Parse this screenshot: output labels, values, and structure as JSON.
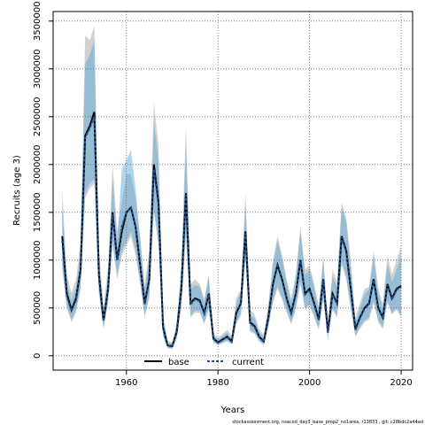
{
  "chart_data": {
    "type": "line",
    "xlabel": "Years",
    "ylabel": "Recruits (age 3)",
    "xlim": [
      1944,
      2022.5
    ],
    "ylim": [
      -150000,
      3600000
    ],
    "x_ticks": [
      1960,
      1980,
      2000,
      2020
    ],
    "y_ticks": [
      0,
      500000,
      1000000,
      1500000,
      2000000,
      2500000,
      3000000,
      3500000
    ],
    "grid": true,
    "legend": {
      "placement": "bottom-left",
      "entries": [
        "base",
        "current"
      ]
    },
    "footer": "stockassessment.org, nsacod_day3_base_prop2_no1area, r13833 , git: c28bdc2a44ad",
    "colors": {
      "base_line": "#000000",
      "current_line": "#1f4e8c",
      "base_band": "#999999",
      "current_band": "#4fa3d9",
      "grid": "#666666"
    },
    "years": [
      1946,
      1947,
      1948,
      1949,
      1950,
      1951,
      1952,
      1953,
      1954,
      1955,
      1956,
      1957,
      1958,
      1959,
      1960,
      1961,
      1962,
      1963,
      1964,
      1965,
      1966,
      1967,
      1968,
      1969,
      1970,
      1971,
      1972,
      1973,
      1974,
      1975,
      1976,
      1977,
      1978,
      1979,
      1980,
      1981,
      1982,
      1983,
      1984,
      1985,
      1986,
      1987,
      1988,
      1989,
      1990,
      1991,
      1992,
      1993,
      1994,
      1995,
      1996,
      1997,
      1998,
      1999,
      2000,
      2001,
      2002,
      2003,
      2004,
      2005,
      2006,
      2007,
      2008,
      2009,
      2010,
      2011,
      2012,
      2013,
      2014,
      2015,
      2016,
      2017,
      2018,
      2019,
      2020
    ],
    "series": [
      {
        "name": "base",
        "values": [
          1250000,
          650000,
          480000,
          600000,
          900000,
          2300000,
          2400000,
          2550000,
          850000,
          370000,
          700000,
          1500000,
          1000000,
          1300000,
          1500000,
          1550000,
          1350000,
          950000,
          550000,
          800000,
          2000000,
          1600000,
          300000,
          110000,
          100000,
          250000,
          700000,
          1700000,
          550000,
          600000,
          580000,
          450000,
          650000,
          180000,
          140000,
          170000,
          200000,
          150000,
          450000,
          550000,
          1300000,
          350000,
          310000,
          200000,
          150000,
          400000,
          750000,
          950000,
          800000,
          600000,
          450000,
          650000,
          1000000,
          650000,
          700000,
          550000,
          380000,
          800000,
          250000,
          650000,
          550000,
          1250000,
          1100000,
          700000,
          280000,
          400000,
          500000,
          550000,
          800000,
          500000,
          400000,
          750000,
          600000,
          700000,
          730000
        ],
        "lower": [
          900000,
          500000,
          350000,
          450000,
          700000,
          1650000,
          1750000,
          1800000,
          650000,
          280000,
          550000,
          1150000,
          800000,
          1050000,
          1150000,
          1250000,
          1050000,
          750000,
          400000,
          600000,
          1500000,
          1150000,
          200000,
          80000,
          70000,
          180000,
          500000,
          1250000,
          400000,
          450000,
          450000,
          330000,
          480000,
          140000,
          110000,
          130000,
          150000,
          120000,
          330000,
          420000,
          1000000,
          250000,
          230000,
          150000,
          110000,
          300000,
          550000,
          700000,
          580000,
          450000,
          330000,
          480000,
          750000,
          480000,
          520000,
          400000,
          270000,
          580000,
          180000,
          480000,
          400000,
          950000,
          800000,
          480000,
          200000,
          280000,
          350000,
          380000,
          550000,
          350000,
          280000,
          550000,
          430000,
          480000,
          400000
        ],
        "upper": [
          1750000,
          850000,
          660000,
          800000,
          1200000,
          3350000,
          3300000,
          3450000,
          1150000,
          500000,
          950000,
          2000000,
          1300000,
          1600000,
          1900000,
          1900000,
          1650000,
          1250000,
          750000,
          1100000,
          2650000,
          2200000,
          450000,
          160000,
          140000,
          350000,
          950000,
          2400000,
          750000,
          800000,
          750000,
          600000,
          850000,
          240000,
          190000,
          230000,
          270000,
          210000,
          600000,
          700000,
          1700000,
          480000,
          430000,
          280000,
          220000,
          550000,
          1000000,
          1250000,
          1050000,
          800000,
          600000,
          850000,
          1350000,
          900000,
          950000,
          750000,
          520000,
          1050000,
          350000,
          900000,
          780000,
          1600000,
          1450000,
          1000000,
          400000,
          550000,
          700000,
          720000,
          1100000,
          700000,
          550000,
          1050000,
          850000,
          1000000,
          1150000
        ]
      },
      {
        "name": "current",
        "values": [
          1200000,
          620000,
          470000,
          580000,
          880000,
          2280000,
          2380000,
          2500000,
          820000,
          360000,
          690000,
          1480000,
          1000000,
          1350000,
          1500000,
          1550000,
          1350000,
          950000,
          540000,
          790000,
          1950000,
          1580000,
          290000,
          105000,
          95000,
          240000,
          690000,
          1680000,
          540000,
          590000,
          570000,
          440000,
          640000,
          175000,
          135000,
          165000,
          195000,
          145000,
          440000,
          540000,
          1280000,
          340000,
          300000,
          195000,
          145000,
          390000,
          740000,
          940000,
          790000,
          590000,
          440000,
          640000,
          990000,
          640000,
          690000,
          540000,
          370000,
          790000,
          240000,
          640000,
          540000,
          1240000,
          1090000,
          690000,
          270000,
          390000,
          490000,
          540000,
          790000,
          490000,
          390000,
          740000,
          590000,
          690000,
          720000
        ],
        "lower": [
          950000,
          520000,
          380000,
          480000,
          720000,
          1700000,
          1800000,
          1850000,
          680000,
          300000,
          580000,
          1200000,
          850000,
          1100000,
          1200000,
          1300000,
          1100000,
          780000,
          430000,
          640000,
          1550000,
          1200000,
          220000,
          85000,
          75000,
          190000,
          530000,
          1300000,
          420000,
          470000,
          470000,
          350000,
          500000,
          145000,
          115000,
          140000,
          160000,
          125000,
          350000,
          440000,
          1050000,
          270000,
          240000,
          160000,
          120000,
          320000,
          580000,
          730000,
          610000,
          470000,
          350000,
          500000,
          780000,
          500000,
          540000,
          420000,
          290000,
          610000,
          190000,
          500000,
          420000,
          980000,
          840000,
          510000,
          210000,
          300000,
          370000,
          400000,
          580000,
          370000,
          300000,
          580000,
          450000,
          500000,
          420000
        ],
        "upper": [
          1600000,
          760000,
          580000,
          720000,
          1080000,
          3050000,
          3150000,
          3300000,
          1000000,
          440000,
          840000,
          1850000,
          1200000,
          1950000,
          2050000,
          2150000,
          1750000,
          1200000,
          700000,
          1000000,
          2450000,
          2050000,
          390000,
          135000,
          125000,
          310000,
          880000,
          2200000,
          700000,
          740000,
          720000,
          560000,
          820000,
          215000,
          170000,
          205000,
          240000,
          180000,
          560000,
          660000,
          1580000,
          430000,
          390000,
          250000,
          190000,
          500000,
          950000,
          1200000,
          1020000,
          760000,
          560000,
          820000,
          1300000,
          850000,
          900000,
          720000,
          480000,
          1000000,
          310000,
          830000,
          720000,
          1550000,
          1400000,
          900000,
          350000,
          500000,
          640000,
          700000,
          1050000,
          650000,
          500000,
          960000,
          770000,
          900000,
          1050000
        ]
      }
    ]
  }
}
